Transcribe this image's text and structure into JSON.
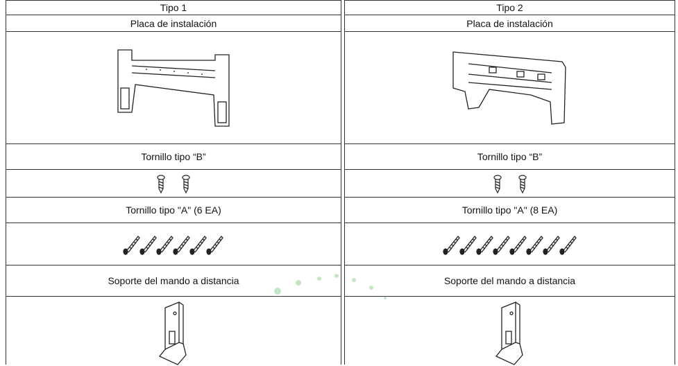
{
  "columns": [
    {
      "header": "Tipo 1",
      "rows": [
        "Placa de instalación",
        "Tornillo tipo “B”",
        "Tornillo tipo \"A\" (6 EA)",
        "Soporte del mando a distancia"
      ]
    },
    {
      "header": "Tipo 2",
      "rows": [
        "Placa de instalación",
        "Tornillo tipo “B”",
        "Tornillo tipo \"A\" (8 EA)",
        "Soporte del mando a distancia"
      ]
    }
  ]
}
